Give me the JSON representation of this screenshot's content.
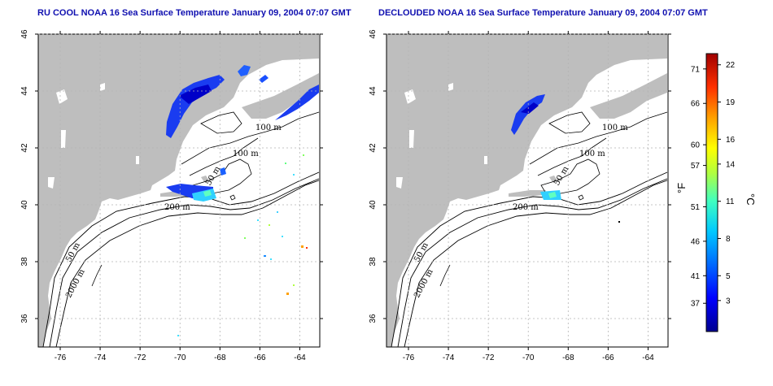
{
  "titles": {
    "left": "RU COOL NOAA 16 Sea Surface Temperature January 09, 2004 07:07 GMT",
    "right": "DECLOUDED NOAA 16 Sea Surface Temperature January 09, 2004 07:07 GMT"
  },
  "axes": {
    "lon_labels": [
      "-76",
      "-74",
      "-72",
      "-70",
      "-68",
      "-66",
      "-64"
    ],
    "lon_values": [
      -76,
      -74,
      -72,
      -70,
      -68,
      -66,
      -64
    ],
    "lat_labels": [
      "36",
      "38",
      "40",
      "42",
      "44",
      "46"
    ],
    "lat_values": [
      36,
      38,
      40,
      42,
      44,
      46
    ],
    "lon_range": [
      -77.1,
      -63.0
    ],
    "lat_range": [
      35.0,
      46.0
    ],
    "grid": "dotted"
  },
  "contour_labels": {
    "left": [
      "100 m",
      "100 m",
      "50 m",
      "200 m",
      "50 m",
      "2000 m"
    ],
    "right": [
      "100 m",
      "100 m",
      "50 m",
      "200 m",
      "50 m",
      "2000 m"
    ]
  },
  "colorbar": {
    "fahrenheit_label": "°F",
    "celsius_label": "°C",
    "fahrenheit_ticks": [
      "71",
      "66",
      "60",
      "57",
      "51",
      "46",
      "41",
      "37"
    ],
    "celsius_ticks": [
      "22",
      "19",
      "16",
      "14",
      "11",
      "8",
      "5",
      "3"
    ],
    "celsius_range": [
      0.5,
      22.9
    ],
    "colors": [
      "#0000a0",
      "#0000ff",
      "#0060ff",
      "#00c0ff",
      "#30ffd0",
      "#b0ff50",
      "#ffff00",
      "#ffa000",
      "#ff3000",
      "#b00000"
    ]
  },
  "colors": {
    "land": "#bebebe",
    "ocean": "#ffffff",
    "grid": "#b0b0b0"
  }
}
